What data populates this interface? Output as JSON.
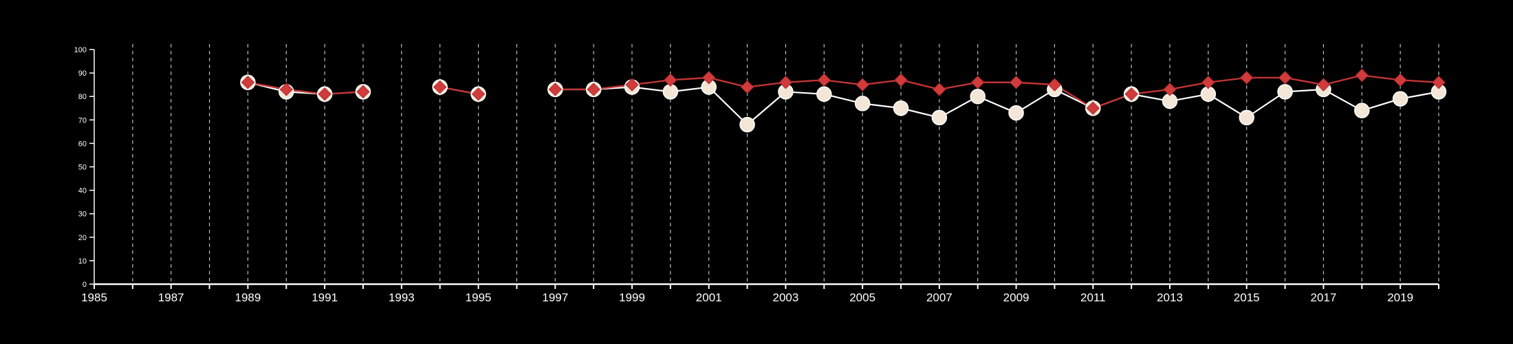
{
  "chart_data": {
    "type": "line",
    "xlim": [
      1985,
      2020
    ],
    "ylim": [
      0,
      100
    ],
    "x_ticks": [
      1985,
      1987,
      1989,
      1991,
      1993,
      1995,
      1997,
      1999,
      2001,
      2003,
      2005,
      2007,
      2009,
      2011,
      2013,
      2015,
      2017,
      2019
    ],
    "x_tick_labels": [
      "1985",
      "1987",
      "1989",
      "1991",
      "1993",
      "1995",
      "1997",
      "1999",
      "2001",
      "2003",
      "2005",
      "2007",
      "2009",
      "2011",
      "2013",
      "2015",
      "2017",
      "2019"
    ],
    "y_ticks": [
      0,
      10,
      20,
      30,
      40,
      50,
      60,
      70,
      80,
      90,
      100
    ],
    "y_tick_labels": [
      "0",
      "10",
      "20",
      "30",
      "40",
      "50",
      "60",
      "70",
      "80",
      "90",
      "100"
    ],
    "grid": "vertical dashed lines at every year",
    "legend": "none",
    "series": [
      {
        "marker": "circle",
        "color": "#f3e6d6",
        "line_color": "#ffffff",
        "points": [
          [
            1989,
            86
          ],
          [
            1990,
            82
          ],
          [
            1991,
            81
          ],
          [
            1992,
            82
          ],
          [
            1994,
            84
          ],
          [
            1995,
            81
          ],
          [
            1997,
            83
          ],
          [
            1998,
            83
          ],
          [
            1999,
            84
          ],
          [
            2000,
            82
          ],
          [
            2001,
            84
          ],
          [
            2002,
            68
          ],
          [
            2003,
            82
          ],
          [
            2004,
            81
          ],
          [
            2005,
            77
          ],
          [
            2006,
            75
          ],
          [
            2007,
            71
          ],
          [
            2008,
            80
          ],
          [
            2009,
            73
          ],
          [
            2010,
            83
          ],
          [
            2011,
            75
          ],
          [
            2012,
            81
          ],
          [
            2013,
            78
          ],
          [
            2014,
            81
          ],
          [
            2015,
            71
          ],
          [
            2016,
            82
          ],
          [
            2017,
            83
          ],
          [
            2018,
            74
          ],
          [
            2019,
            79
          ],
          [
            2020,
            82
          ]
        ]
      },
      {
        "marker": "diamond",
        "color": "#d13b3b",
        "line_color": "#c23434",
        "points": [
          [
            1989,
            86
          ],
          [
            1990,
            83
          ],
          [
            1991,
            81
          ],
          [
            1992,
            82
          ],
          [
            1994,
            84
          ],
          [
            1995,
            81
          ],
          [
            1997,
            83
          ],
          [
            1998,
            83
          ],
          [
            1999,
            85
          ],
          [
            2000,
            87
          ],
          [
            2001,
            88
          ],
          [
            2002,
            84
          ],
          [
            2003,
            86
          ],
          [
            2004,
            87
          ],
          [
            2005,
            85
          ],
          [
            2006,
            87
          ],
          [
            2007,
            83
          ],
          [
            2008,
            86
          ],
          [
            2009,
            86
          ],
          [
            2010,
            85
          ],
          [
            2011,
            75
          ],
          [
            2012,
            81
          ],
          [
            2013,
            83
          ],
          [
            2014,
            86
          ],
          [
            2015,
            88
          ],
          [
            2016,
            88
          ],
          [
            2017,
            85
          ],
          [
            2018,
            89
          ],
          [
            2019,
            87
          ],
          [
            2020,
            86
          ]
        ]
      }
    ]
  }
}
